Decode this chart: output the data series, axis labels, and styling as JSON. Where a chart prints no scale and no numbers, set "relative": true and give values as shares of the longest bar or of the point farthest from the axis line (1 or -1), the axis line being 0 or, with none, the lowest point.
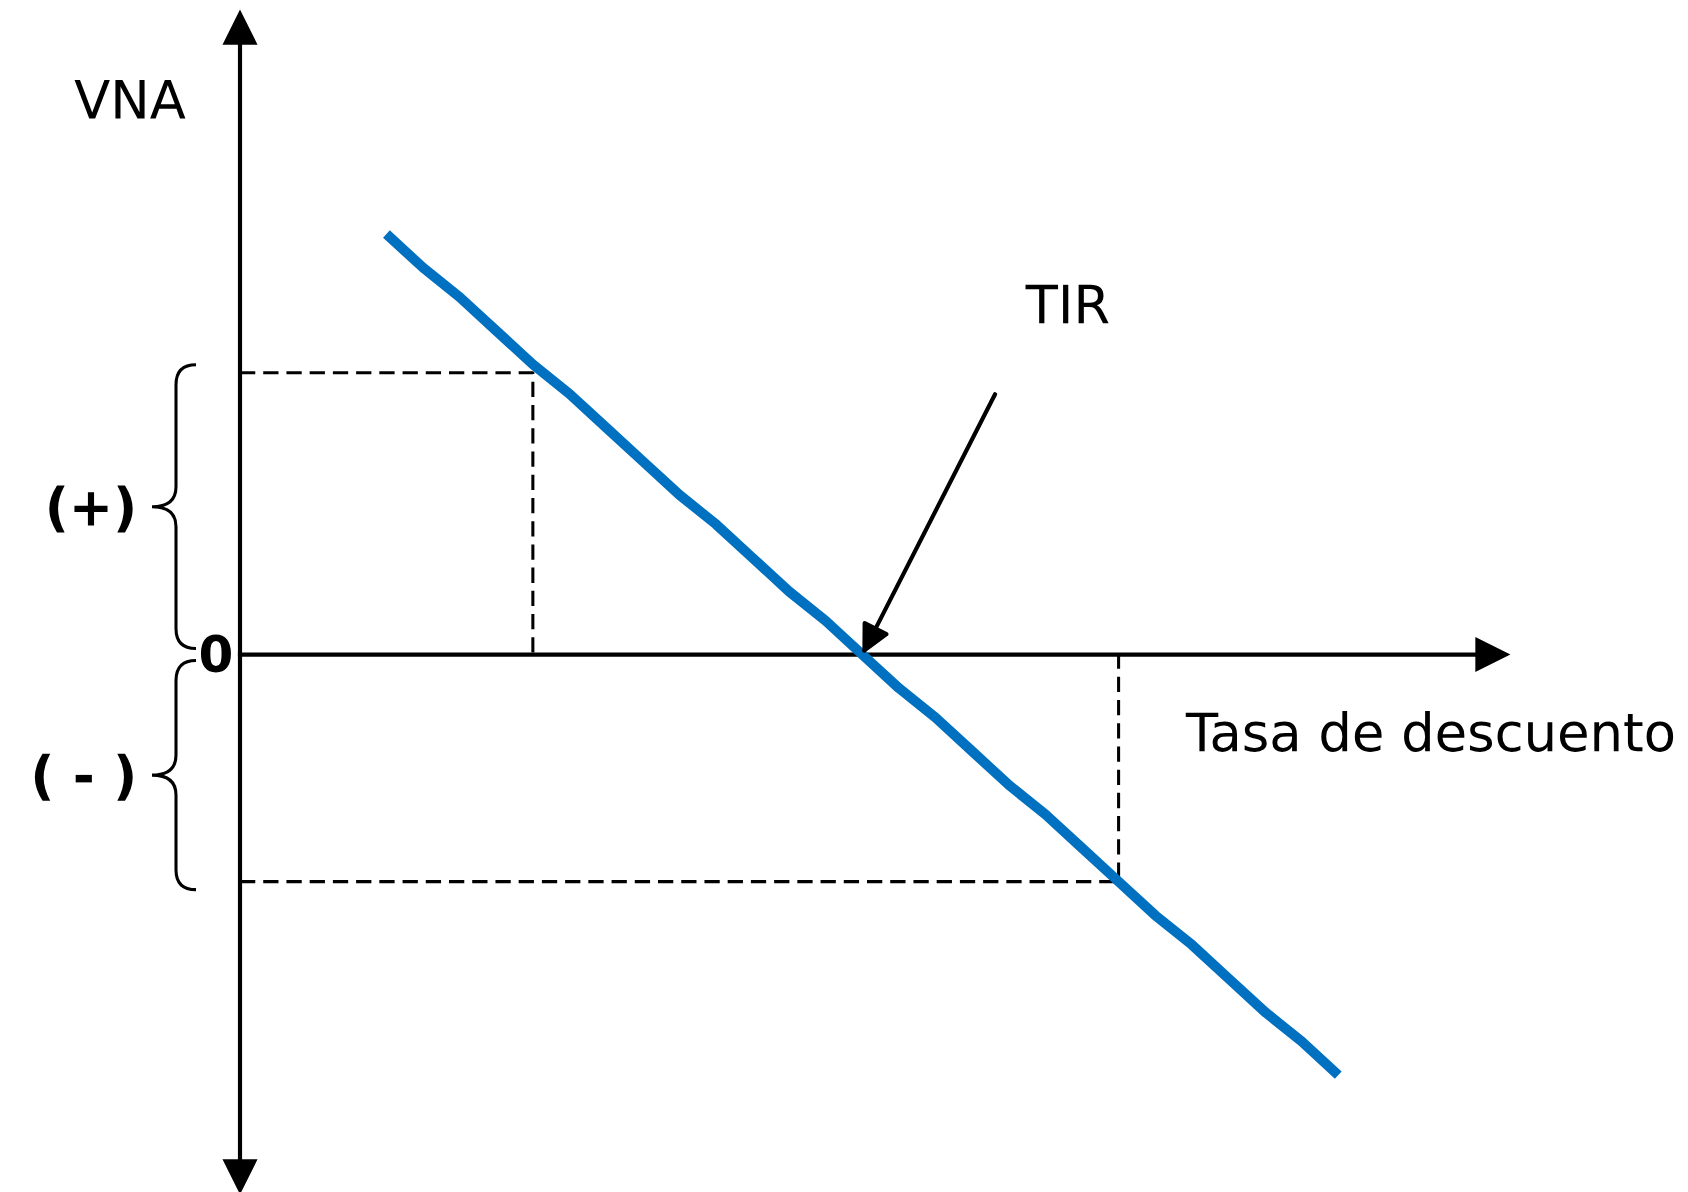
{
  "chart_data": {
    "type": "line",
    "xlabel": "Tasa de descuento",
    "ylabel": "VNA",
    "relative": true,
    "categories": [
      null,
      null,
      null,
      null,
      null,
      null,
      null,
      null,
      null,
      null,
      null,
      null,
      null,
      null,
      null,
      null,
      null,
      null,
      null,
      null,
      null,
      null,
      null,
      null,
      null,
      null,
      null,
      null,
      null,
      null,
      null
    ],
    "series": [
      {
        "color": "#0070c0",
        "line_style": "solid",
        "values": [
          null,
          null,
          null,
          null,
          1,
          0.92,
          0.85,
          0.77,
          0.69,
          0.62,
          0.54,
          0.46,
          0.38,
          0.31,
          0.23,
          0.15,
          0.08,
          0,
          -0.08,
          -0.15,
          -0.23,
          -0.31,
          -0.38,
          -0.46,
          -0.54,
          -0.62,
          -0.69,
          -0.77,
          -0.85,
          -0.92,
          -1
        ]
      },
      {
        "type": "step",
        "color": "#000000",
        "line_style": "dashed",
        "values": [
          0.67,
          0.67,
          0.67,
          0.67,
          0.67,
          0.67,
          0.67,
          0.67,
          0,
          null,
          null,
          null,
          null,
          null,
          null,
          null,
          null,
          null,
          null,
          null,
          null,
          null,
          null,
          null,
          null,
          null,
          null,
          null,
          null,
          null,
          null
        ]
      },
      {
        "type": "step",
        "color": "#000000",
        "line_style": "dashed",
        "values": [
          -0.54,
          -0.54,
          -0.54,
          -0.54,
          -0.54,
          -0.54,
          -0.54,
          -0.54,
          -0.54,
          -0.54,
          -0.54,
          -0.54,
          -0.54,
          -0.54,
          -0.54,
          -0.54,
          -0.54,
          -0.54,
          -0.54,
          -0.54,
          -0.54,
          -0.54,
          -0.54,
          -0.54,
          0,
          null,
          null,
          null,
          null,
          null,
          null
        ]
      }
    ],
    "annotations": [
      "TIR",
      "(+)",
      "0",
      "( - )"
    ]
  }
}
